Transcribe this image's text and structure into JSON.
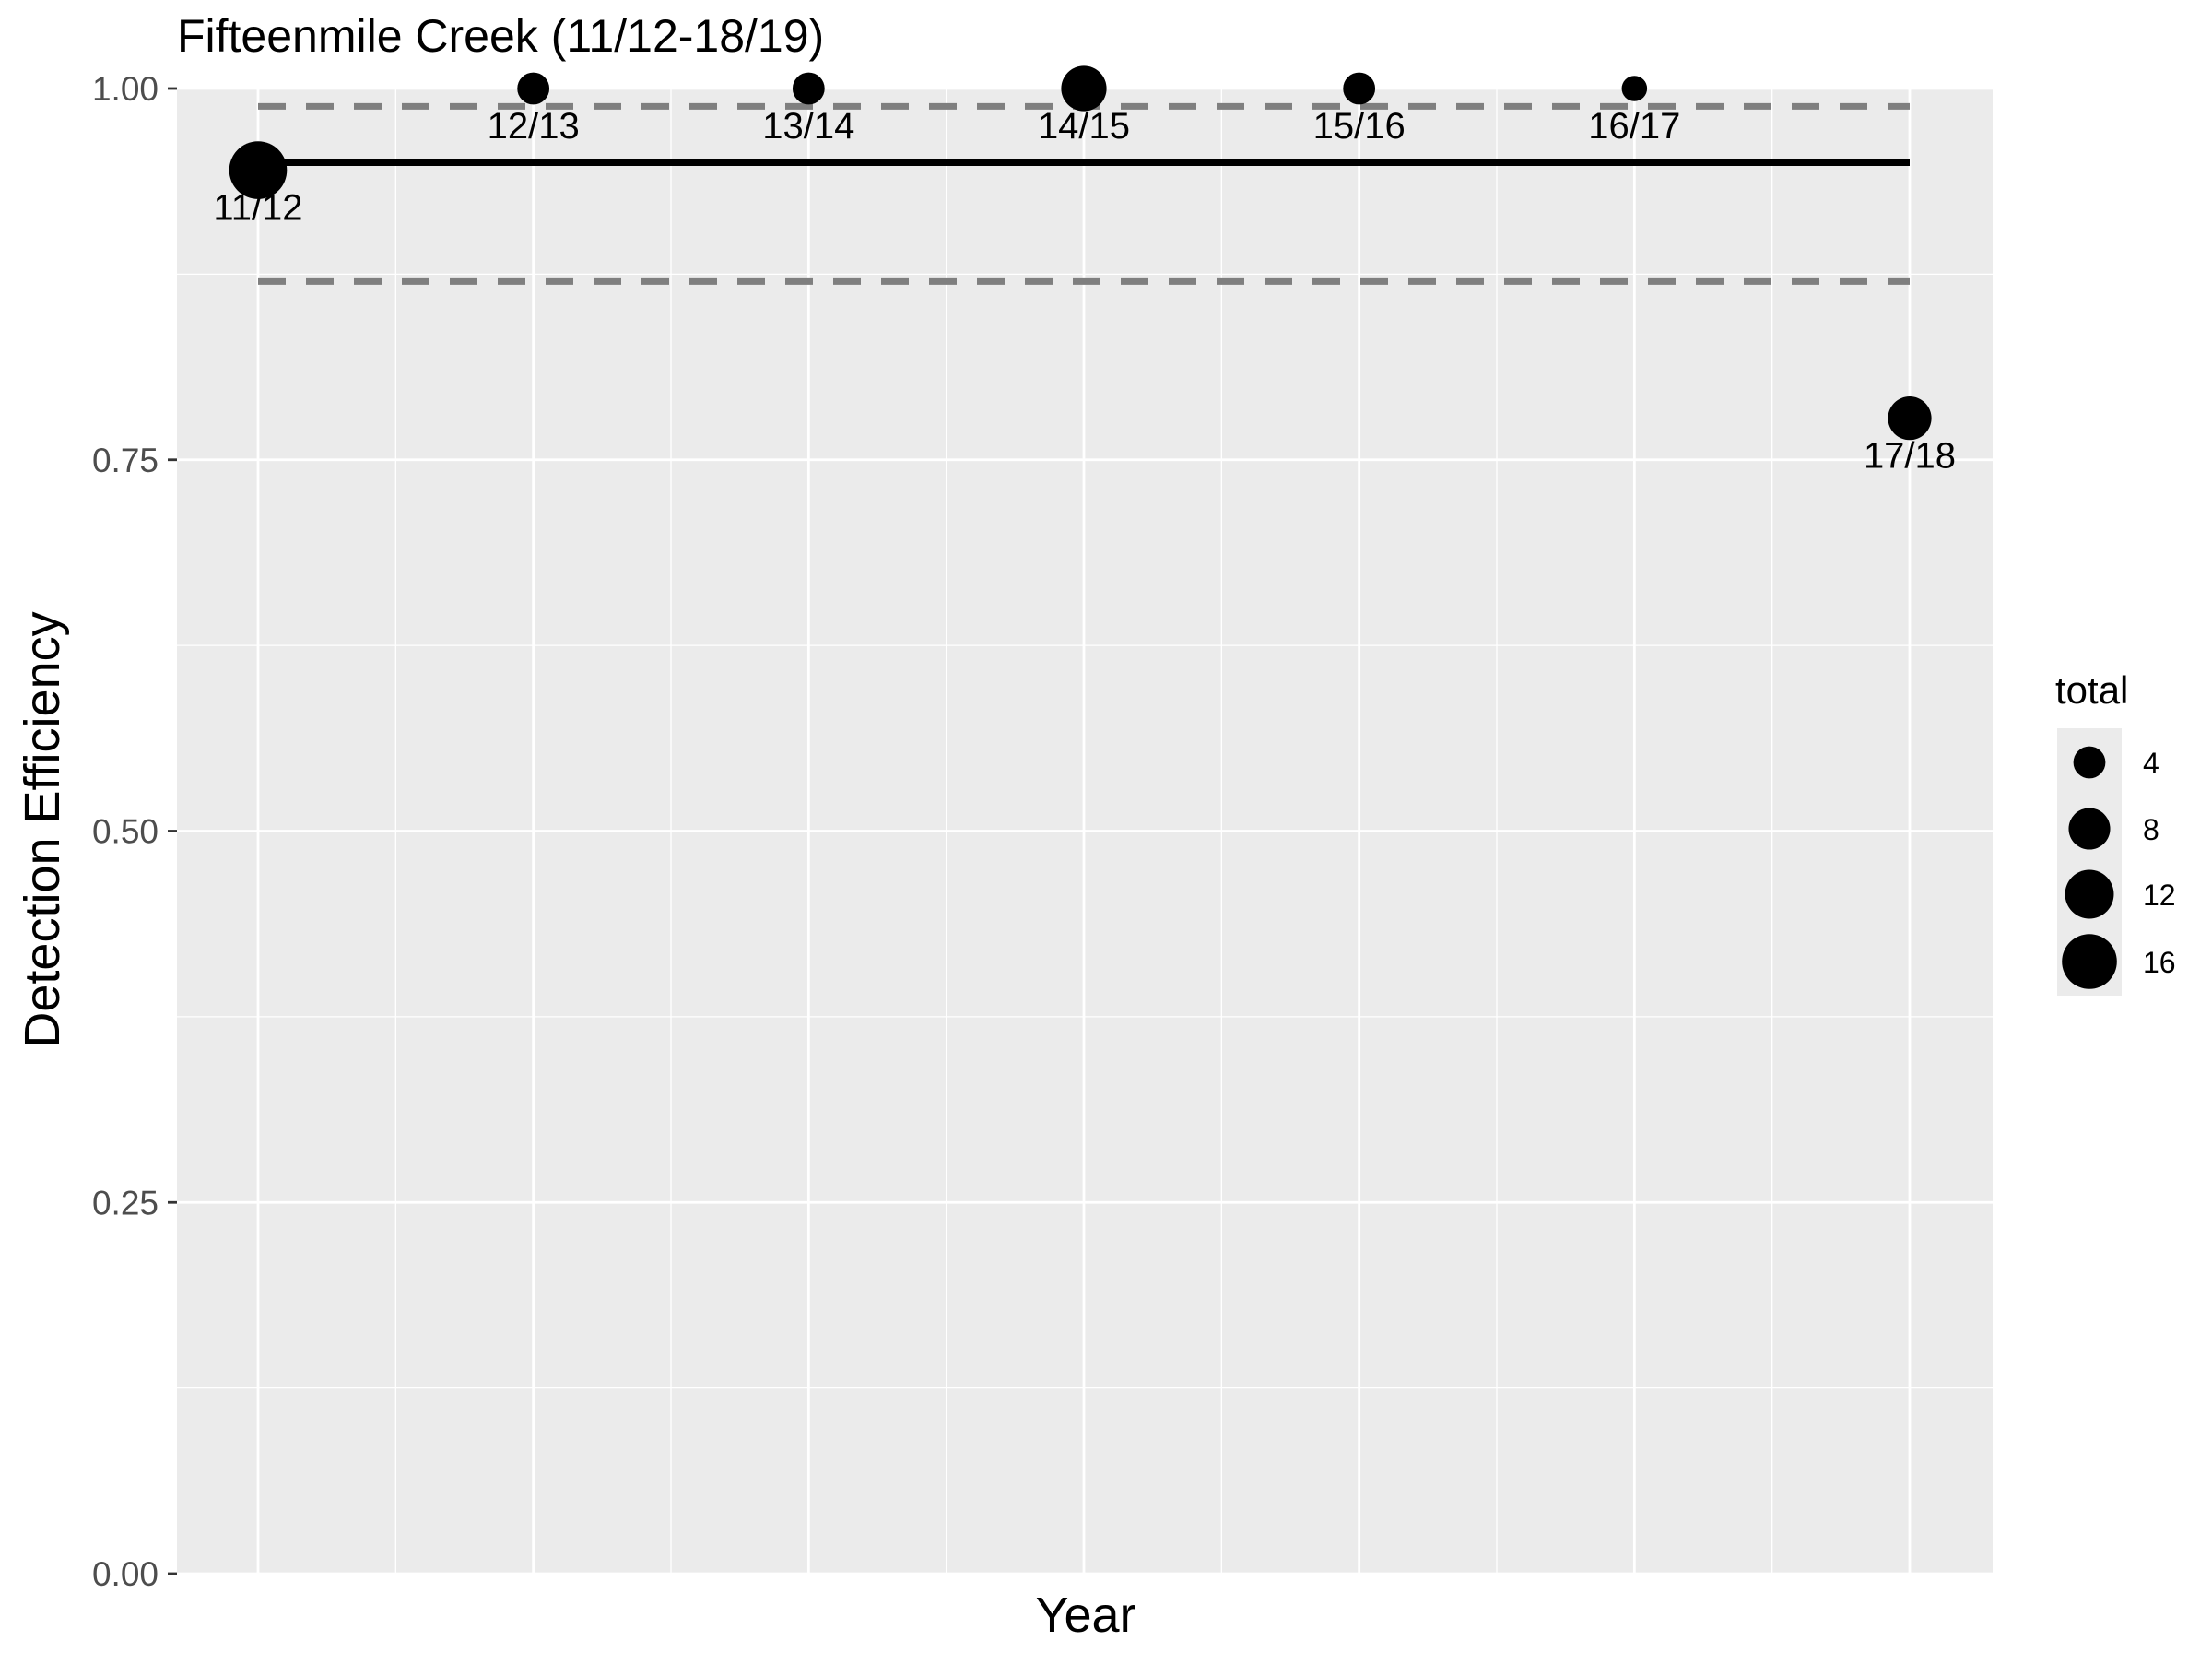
{
  "chart_data": {
    "type": "scatter",
    "title": "Fifteenmile Creek (11/12-18/19)",
    "xlabel": "Year",
    "ylabel": "Detection Efficiency",
    "ylim": [
      0,
      1
    ],
    "yticks": [
      "0.00",
      "0.25",
      "0.50",
      "0.75",
      "1.00"
    ],
    "grid": true,
    "points": [
      {
        "label": "11/12",
        "x": 0.0,
        "y": 0.945,
        "total": 18
      },
      {
        "label": "12/13",
        "x": 1.0,
        "y": 1.0,
        "total": 4
      },
      {
        "label": "13/14",
        "x": 2.0,
        "y": 1.0,
        "total": 4
      },
      {
        "label": "14/15",
        "x": 3.0,
        "y": 1.0,
        "total": 10
      },
      {
        "label": "15/16",
        "x": 4.0,
        "y": 1.0,
        "total": 4
      },
      {
        "label": "16/17",
        "x": 5.0,
        "y": 1.0,
        "total": 2
      },
      {
        "label": "17/18",
        "x": 6.0,
        "y": 0.778,
        "total": 9
      }
    ],
    "mean_line": {
      "y": 0.95,
      "x_range": [
        0,
        6
      ]
    },
    "ci_lines": [
      {
        "y": 0.988,
        "x_range": [
          0,
          6
        ]
      },
      {
        "y": 0.87,
        "x_range": [
          0,
          6
        ]
      }
    ],
    "legend": {
      "title": "total",
      "placement": "right",
      "entries": [
        {
          "label": "4",
          "value": 4
        },
        {
          "label": "8",
          "value": 8
        },
        {
          "label": "12",
          "value": 12
        },
        {
          "label": "16",
          "value": 16
        }
      ]
    },
    "colors": {
      "panel": "#ebebeb",
      "grid": "#ffffff",
      "point": "#000000",
      "mean_line": "#000000",
      "ci_line": "#7f7f7f",
      "text": "#000000",
      "tick_text": "#4d4d4d"
    }
  }
}
